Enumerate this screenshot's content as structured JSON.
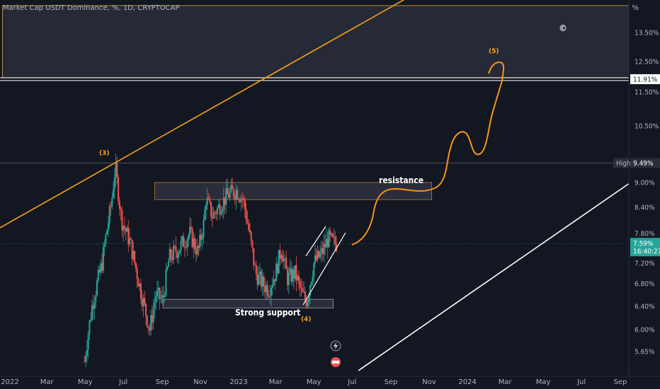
{
  "chart_data": {
    "type": "candlestick",
    "title": "Market Cap USDT Dominance, %, 1D, CRYPTOCAP",
    "unit_label": "%",
    "ylim": [
      5.4,
      14.6
    ],
    "y_ticks": [
      "13.50%",
      "12.50%",
      "11.50%",
      "10.50%",
      "9.00%",
      "8.40%",
      "7.80%",
      "7.20%",
      "6.80%",
      "6.40%",
      "6.00%",
      "5.65%"
    ],
    "y_tick_values": [
      13.5,
      12.5,
      11.5,
      10.5,
      9.0,
      8.4,
      7.8,
      7.2,
      6.8,
      6.4,
      6.0,
      5.65
    ],
    "x_ticks": [
      "2022",
      "Mar",
      "May",
      "Jul",
      "Sep",
      "Nov",
      "2023",
      "Mar",
      "May",
      "Jul",
      "Sep",
      "Nov",
      "2024",
      "Mar",
      "May",
      "Jul",
      "Sep"
    ],
    "x_tick_dates": [
      "2022-01-01",
      "2022-03-01",
      "2022-05-01",
      "2022-07-01",
      "2022-09-01",
      "2022-11-01",
      "2023-01-01",
      "2023-03-01",
      "2023-05-01",
      "2023-07-01",
      "2023-09-01",
      "2023-11-01",
      "2024-01-01",
      "2024-03-01",
      "2024-05-01",
      "2024-07-01",
      "2024-09-01"
    ],
    "price_path": [
      {
        "date": "2022-04-30",
        "value": 5.5
      },
      {
        "date": "2022-05-12",
        "value": 6.4
      },
      {
        "date": "2022-05-28",
        "value": 7.2
      },
      {
        "date": "2022-06-12",
        "value": 8.5
      },
      {
        "date": "2022-06-18",
        "value": 9.4
      },
      {
        "date": "2022-06-28",
        "value": 8.1
      },
      {
        "date": "2022-07-12",
        "value": 7.6
      },
      {
        "date": "2022-07-28",
        "value": 6.7
      },
      {
        "date": "2022-08-12",
        "value": 6.0
      },
      {
        "date": "2022-08-22",
        "value": 6.6
      },
      {
        "date": "2022-09-02",
        "value": 6.5
      },
      {
        "date": "2022-09-12",
        "value": 7.3
      },
      {
        "date": "2022-09-28",
        "value": 7.5
      },
      {
        "date": "2022-10-15",
        "value": 7.8
      },
      {
        "date": "2022-10-28",
        "value": 7.4
      },
      {
        "date": "2022-11-06",
        "value": 8.0
      },
      {
        "date": "2022-11-10",
        "value": 8.6
      },
      {
        "date": "2022-11-20",
        "value": 8.2
      },
      {
        "date": "2022-11-30",
        "value": 8.4
      },
      {
        "date": "2022-12-15",
        "value": 8.7
      },
      {
        "date": "2022-12-28",
        "value": 8.8
      },
      {
        "date": "2023-01-08",
        "value": 8.6
      },
      {
        "date": "2023-01-18",
        "value": 7.8
      },
      {
        "date": "2023-01-28",
        "value": 7.0
      },
      {
        "date": "2023-02-08",
        "value": 6.8
      },
      {
        "date": "2023-02-18",
        "value": 6.7
      },
      {
        "date": "2023-03-01",
        "value": 7.0
      },
      {
        "date": "2023-03-10",
        "value": 7.5
      },
      {
        "date": "2023-03-20",
        "value": 6.9
      },
      {
        "date": "2023-04-01",
        "value": 7.0
      },
      {
        "date": "2023-04-12",
        "value": 6.6
      },
      {
        "date": "2023-04-20",
        "value": 6.5
      },
      {
        "date": "2023-05-01",
        "value": 7.2
      },
      {
        "date": "2023-05-14",
        "value": 7.4
      },
      {
        "date": "2023-05-24",
        "value": 7.7
      },
      {
        "date": "2023-06-01",
        "value": 7.6
      },
      {
        "date": "2023-06-07",
        "value": 7.59
      }
    ],
    "last_value": 7.59,
    "last_value_label": "7.59%",
    "countdown_label": "16:40:27",
    "high_tag": "High",
    "high_value_label": "9.49%",
    "high_value": 9.49,
    "level_label": "11.91%",
    "level_value": 11.91,
    "zones": [
      {
        "name": "upper-zone",
        "date_from": "2021-12-20",
        "date_to": "2024-10-15",
        "from": 11.95,
        "to": 14.5,
        "color": "#2a2e39"
      },
      {
        "name": "resistance-zone",
        "date_from": "2022-08-20",
        "date_to": "2023-11-05",
        "from": 8.58,
        "to": 9.0,
        "color": "#2f3240"
      },
      {
        "name": "support-zone",
        "date_from": "2022-09-02",
        "date_to": "2023-06-01",
        "from": 6.37,
        "to": 6.52,
        "color": "#2f3240"
      }
    ],
    "annotations": {
      "resistance": "resistance",
      "support": "Strong support",
      "wave3": "(3)",
      "wave4": "(4)",
      "wave5": "(5)",
      "copyright": "©"
    },
    "colors": {
      "up": "#26a69a",
      "down": "#ef5350",
      "projection": "#f7931a",
      "trend_orange": "#f7a11a",
      "trend_white": "#ffffff",
      "last_tag": "#26a69a",
      "background": "#131722"
    },
    "grid": false
  }
}
